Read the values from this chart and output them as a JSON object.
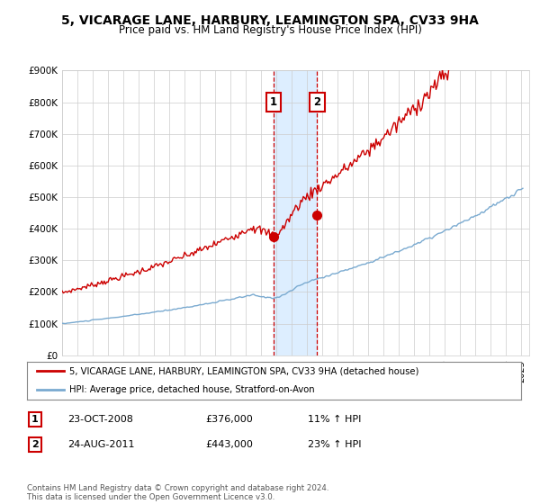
{
  "title": "5, VICARAGE LANE, HARBURY, LEAMINGTON SPA, CV33 9HA",
  "subtitle": "Price paid vs. HM Land Registry's House Price Index (HPI)",
  "ylim": [
    0,
    900000
  ],
  "xlim_start": 1995.0,
  "xlim_end": 2025.5,
  "red_color": "#cc0000",
  "blue_color": "#7aaad0",
  "highlight_color": "#ddeeff",
  "purchase1_x": 2008.81,
  "purchase1_y": 376000,
  "purchase1_label": "1",
  "purchase2_x": 2011.65,
  "purchase2_y": 443000,
  "purchase2_label": "2",
  "legend_line1": "5, VICARAGE LANE, HARBURY, LEAMINGTON SPA, CV33 9HA (detached house)",
  "legend_line2": "HPI: Average price, detached house, Stratford-on-Avon",
  "table_row1": [
    "1",
    "23-OCT-2008",
    "£376,000",
    "11% ↑ HPI"
  ],
  "table_row2": [
    "2",
    "24-AUG-2011",
    "£443,000",
    "23% ↑ HPI"
  ],
  "footnote": "Contains HM Land Registry data © Crown copyright and database right 2024.\nThis data is licensed under the Open Government Licence v3.0.",
  "bg_color": "#ffffff",
  "grid_color": "#cccccc"
}
